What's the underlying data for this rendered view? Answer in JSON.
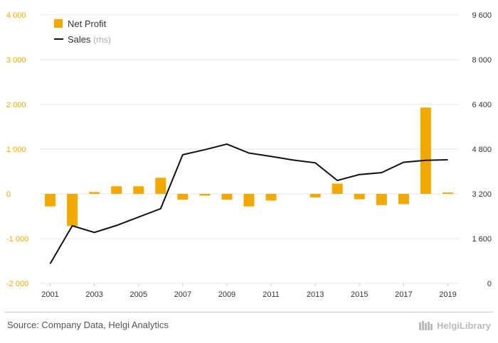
{
  "colors": {
    "bar": "#f2a900",
    "line": "#111111",
    "grid": "#e6e6e6",
    "left_axis_text": "#f2a900"
  },
  "chart_data": {
    "type": "bar+line",
    "categories": [
      "2001",
      "2002",
      "2003",
      "2004",
      "2005",
      "2006",
      "2007",
      "2008",
      "2009",
      "2010",
      "2011",
      "2012",
      "2013",
      "2014",
      "2015",
      "2016",
      "2017",
      "2018",
      "2019"
    ],
    "x_tick_labels": [
      "2001",
      "",
      "2003",
      "",
      "2005",
      "",
      "2007",
      "",
      "2009",
      "",
      "2011",
      "",
      "2013",
      "",
      "2015",
      "",
      "2017",
      "",
      "2019"
    ],
    "series": [
      {
        "name": "Net Profit",
        "axis": "left",
        "type": "bar",
        "values": [
          -280,
          -720,
          40,
          170,
          170,
          360,
          -130,
          -40,
          -130,
          -280,
          -150,
          0,
          -80,
          230,
          -120,
          -250,
          -230,
          1930,
          30
        ]
      },
      {
        "name": "Sales",
        "axis": "right",
        "type": "line",
        "values": [
          700,
          2060,
          1820,
          2070,
          2370,
          2670,
          4600,
          4780,
          4980,
          4660,
          4540,
          4410,
          4310,
          3680,
          3890,
          3960,
          4330,
          4400,
          4420
        ]
      }
    ],
    "left_axis": {
      "min": -2000,
      "max": 4000,
      "ticks": [
        -2000,
        -1000,
        0,
        1000,
        2000,
        3000,
        4000
      ],
      "tick_labels": [
        "-2 000",
        "-1 000",
        "0",
        "1 000",
        "2 000",
        "3 000",
        "4 000"
      ]
    },
    "right_axis": {
      "min": 0,
      "max": 9600,
      "ticks": [
        0,
        1600,
        3200,
        4800,
        6400,
        8000,
        9600
      ],
      "tick_labels": [
        "0",
        "1 600",
        "3 200",
        "4 800",
        "6 400",
        "8 000",
        "9 600"
      ]
    },
    "legend": {
      "position": "top-left",
      "items": [
        {
          "label": "Net Profit",
          "sub": ""
        },
        {
          "label": "Sales",
          "sub": "(rhs)"
        }
      ]
    },
    "grid": true
  },
  "footer": {
    "source": "Source: Company Data, Helgi Analytics",
    "logo_text": "HelgiLibrary"
  }
}
